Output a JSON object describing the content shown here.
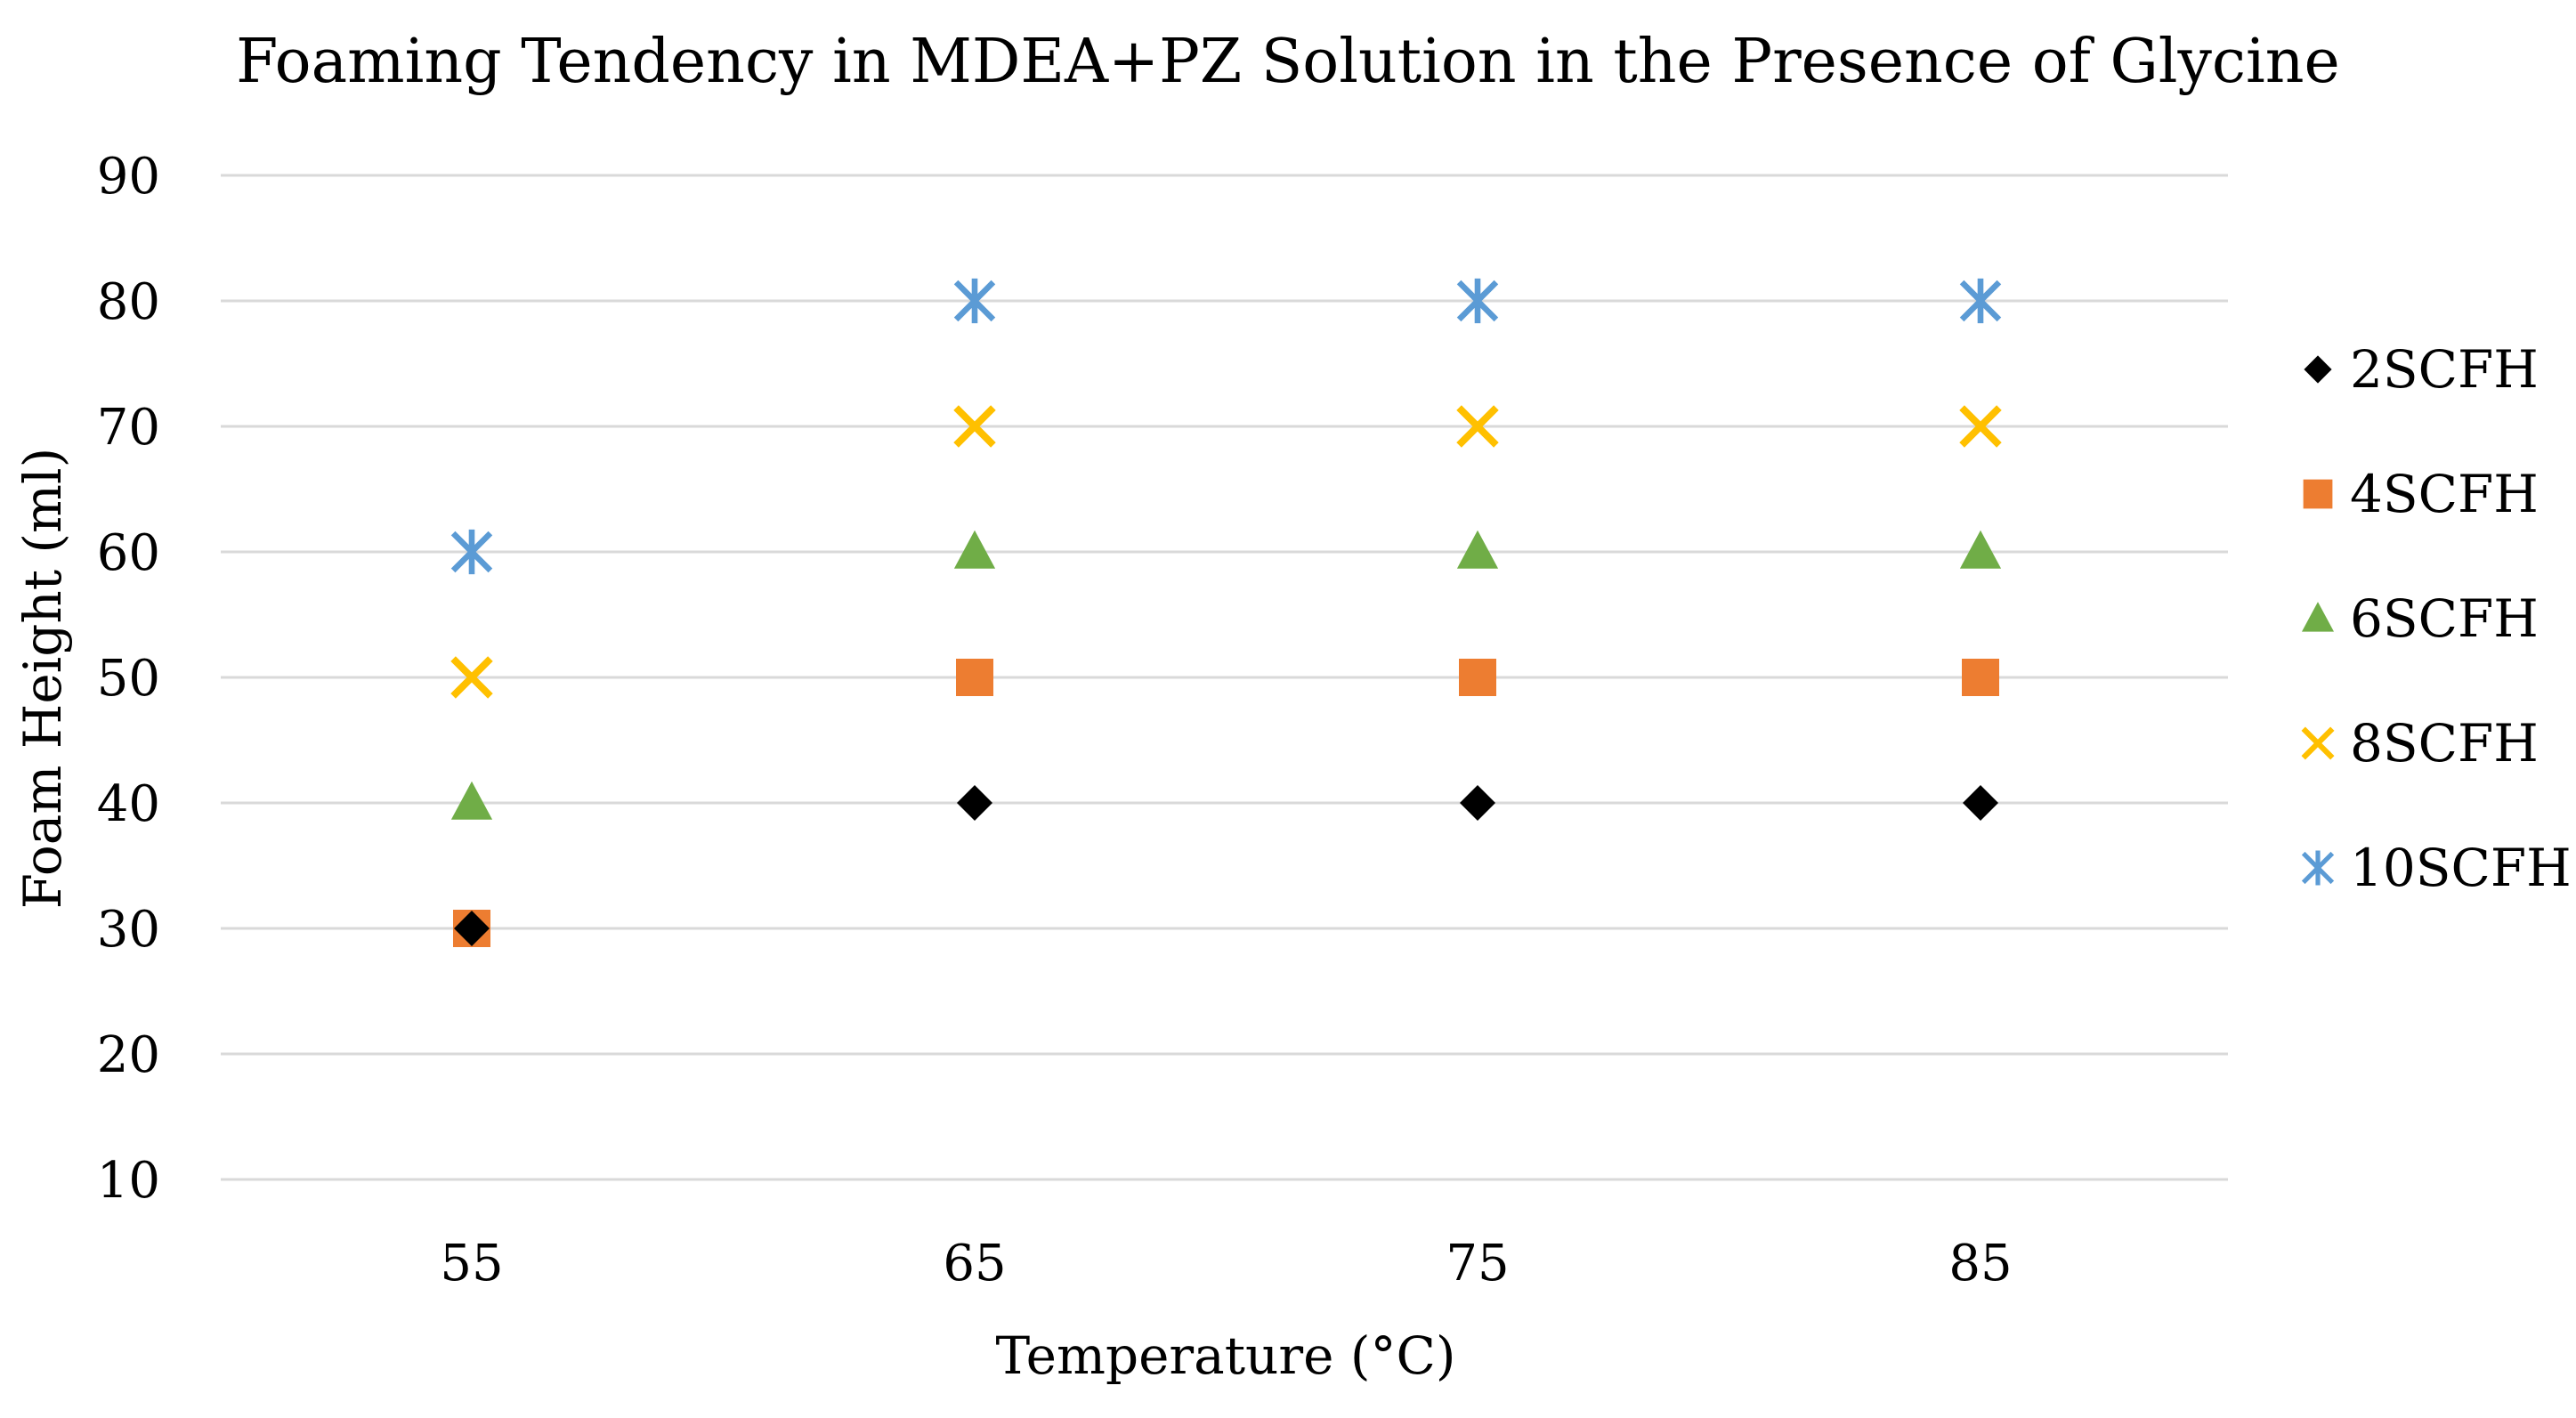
{
  "chart_data": {
    "type": "scatter",
    "title": "Foaming Tendency in MDEA+PZ Solution in the Presence of Glycine",
    "xlabel": "Temperature (°C)",
    "ylabel": "Foam Height (ml)",
    "categories": [
      "55",
      "65",
      "75",
      "85"
    ],
    "x": [
      55,
      65,
      75,
      85
    ],
    "ylim": [
      10,
      90
    ],
    "yticks": [
      10,
      20,
      30,
      40,
      50,
      60,
      70,
      80,
      90
    ],
    "grid": true,
    "legend_position": "right",
    "series": [
      {
        "name": "2SCFH",
        "marker": "diamond",
        "color": "#000000",
        "values": [
          30,
          40,
          40,
          40
        ]
      },
      {
        "name": "4SCFH",
        "marker": "square",
        "color": "#ED7D31",
        "values": [
          30,
          50,
          50,
          50
        ]
      },
      {
        "name": "6SCFH",
        "marker": "triangle",
        "color": "#70AD47",
        "values": [
          40,
          60,
          60,
          60
        ]
      },
      {
        "name": "8SCFH",
        "marker": "x",
        "color": "#FFC000",
        "values": [
          50,
          70,
          70,
          70
        ]
      },
      {
        "name": "10SCFH",
        "marker": "star",
        "color": "#5B9BD5",
        "values": [
          60,
          80,
          80,
          80
        ]
      }
    ]
  }
}
